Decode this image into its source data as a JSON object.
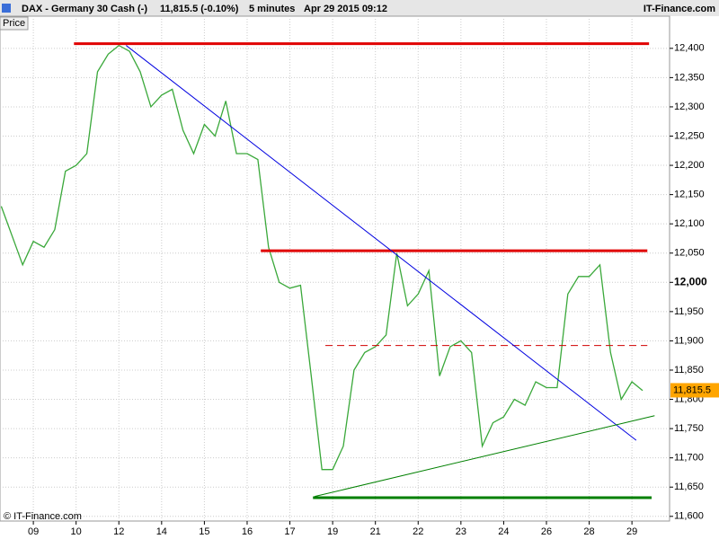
{
  "chart_data": {
    "type": "line",
    "title": "DAX - Germany 30 Cash (-)",
    "quote": "11,815.5 (-0.10%)",
    "interval": "5 minutes",
    "timestamp": "Apr 29 2015 09:12",
    "source": "IT-Finance.com",
    "copyright": "© IT-Finance.com",
    "panel_label": "Price",
    "last": {
      "value": 11815.5,
      "label": "11,815.5"
    },
    "xlim": [
      -0.78,
      14.88
    ],
    "ylim": [
      11592,
      12455
    ],
    "grid": true,
    "bold_tick": 12000,
    "xticks": [
      {
        "value": 0,
        "label": "09"
      },
      {
        "value": 1,
        "label": "10"
      },
      {
        "value": 2,
        "label": "12"
      },
      {
        "value": 3,
        "label": "14"
      },
      {
        "value": 4,
        "label": "15"
      },
      {
        "value": 5,
        "label": "16"
      },
      {
        "value": 6,
        "label": "17"
      },
      {
        "value": 7,
        "label": "19"
      },
      {
        "value": 8,
        "label": "21"
      },
      {
        "value": 9,
        "label": "22"
      },
      {
        "value": 10,
        "label": "23"
      },
      {
        "value": 11,
        "label": "24"
      },
      {
        "value": 12,
        "label": "26"
      },
      {
        "value": 13,
        "label": "28"
      },
      {
        "value": 14,
        "label": "29"
      }
    ],
    "yticks": [
      {
        "value": 11600,
        "label": "11,600"
      },
      {
        "value": 11650,
        "label": "11,650"
      },
      {
        "value": 11700,
        "label": "11,700"
      },
      {
        "value": 11750,
        "label": "11,750"
      },
      {
        "value": 11800,
        "label": "11,800"
      },
      {
        "value": 11850,
        "label": "11,850"
      },
      {
        "value": 11900,
        "label": "11,900"
      },
      {
        "value": 11950,
        "label": "11,950"
      },
      {
        "value": 12000,
        "label": "12,000"
      },
      {
        "value": 12050,
        "label": "12,050"
      },
      {
        "value": 12100,
        "label": "12,100"
      },
      {
        "value": 12150,
        "label": "12,150"
      },
      {
        "value": 12200,
        "label": "12,200"
      },
      {
        "value": 12250,
        "label": "12,250"
      },
      {
        "value": 12300,
        "label": "12,300"
      },
      {
        "value": 12350,
        "label": "12,350"
      },
      {
        "value": 12400,
        "label": "12,400"
      }
    ],
    "series": [
      {
        "color": "#3aa83a",
        "x": [
          -0.75,
          -0.5,
          -0.25,
          0,
          0.25,
          0.5,
          0.75,
          1,
          1.25,
          1.5,
          1.75,
          2,
          2.25,
          2.5,
          2.75,
          3,
          3.25,
          3.5,
          3.75,
          4,
          4.25,
          4.5,
          4.75,
          5,
          5.25,
          5.5,
          5.75,
          6,
          6.25,
          6.5,
          6.75,
          7,
          7.25,
          7.5,
          7.75,
          8,
          8.25,
          8.5,
          8.75,
          9,
          9.25,
          9.5,
          9.75,
          10,
          10.25,
          10.5,
          10.75,
          11,
          11.25,
          11.5,
          11.75,
          12,
          12.25,
          12.5,
          12.75,
          13,
          13.25,
          13.5,
          13.75,
          14,
          14.25
        ],
        "values": [
          12130,
          12080,
          12030,
          12070,
          12060,
          12090,
          12190,
          12200,
          12220,
          12360,
          12390,
          12405,
          12395,
          12360,
          12300,
          12320,
          12330,
          12260,
          12220,
          12270,
          12250,
          12310,
          12220,
          12220,
          12210,
          12060,
          12000,
          11990,
          11995,
          11840,
          11680,
          11680,
          11720,
          11850,
          11880,
          11890,
          11910,
          12050,
          11960,
          11980,
          12020,
          11840,
          11890,
          11900,
          11880,
          11720,
          11760,
          11770,
          11800,
          11790,
          11830,
          11820,
          11820,
          11980,
          12010,
          12010,
          12030,
          11880,
          11800,
          11830,
          11815
        ]
      }
    ],
    "lines": [
      {
        "x": [
          0.95,
          14.4
        ],
        "y": [
          12408,
          12408
        ],
        "color": "#e00000",
        "width": 3,
        "style": "solid"
      },
      {
        "x": [
          5.32,
          14.36
        ],
        "y": [
          12054,
          12054
        ],
        "color": "#e00000",
        "width": 3,
        "style": "solid"
      },
      {
        "x": [
          6.83,
          14.36
        ],
        "y": [
          11892,
          11892
        ],
        "color": "#d00000",
        "width": 1,
        "style": "dashed"
      },
      {
        "x": [
          6.54,
          14.46
        ],
        "y": [
          11632,
          11632
        ],
        "color": "#008000",
        "width": 3,
        "style": "solid"
      },
      {
        "x": [
          2.17,
          14.1
        ],
        "y": [
          12405,
          11730
        ],
        "color": "#0000e0",
        "width": 1,
        "style": "solid"
      },
      {
        "x": [
          6.58,
          14.53
        ],
        "y": [
          11634,
          11772
        ],
        "color": "#008000",
        "width": 1,
        "style": "solid"
      }
    ]
  }
}
